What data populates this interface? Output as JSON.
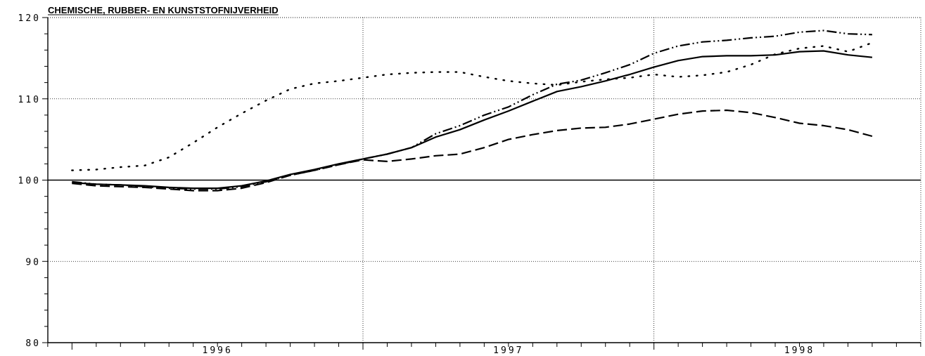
{
  "chart_data": {
    "type": "line",
    "title": "CHEMISCHE, RUBBER- EN KUNSTSTOFNIJVERHEID",
    "xlabel": "",
    "ylabel": "",
    "ylim": [
      80,
      120
    ],
    "xlim": [
      1995.917,
      1998.917
    ],
    "yticks": [
      80,
      90,
      100,
      110,
      120
    ],
    "ytick_labels": [
      "80",
      "90",
      "100",
      "110",
      "120"
    ],
    "xtick_labels": [
      {
        "label": "1996",
        "x": 1996.5
      },
      {
        "label": "1997",
        "x": 1997.5
      },
      {
        "label": "1998",
        "x": 1998.5
      }
    ],
    "year_boundaries": [
      1997.0,
      1998.0
    ],
    "reference_line": 100,
    "grid": true,
    "series": [
      {
        "style": "solid",
        "x": [
          1996.0,
          1996.083,
          1996.167,
          1996.25,
          1996.333,
          1996.417,
          1996.5,
          1996.583,
          1996.667,
          1996.75,
          1996.833,
          1996.917,
          1997.0,
          1997.083,
          1997.167,
          1997.25,
          1997.333,
          1997.417,
          1997.5,
          1997.583,
          1997.667,
          1997.75,
          1997.833,
          1997.917,
          1998.0,
          1998.083,
          1998.167,
          1998.25,
          1998.333,
          1998.417,
          1998.5,
          1998.583,
          1998.667,
          1998.75
        ],
        "y": [
          99.7,
          99.5,
          99.4,
          99.3,
          99.1,
          99.0,
          99.0,
          99.3,
          99.9,
          100.7,
          101.3,
          102.0,
          102.6,
          103.2,
          104.0,
          105.3,
          106.2,
          107.4,
          108.5,
          109.7,
          110.9,
          111.5,
          112.2,
          113.0,
          113.9,
          114.7,
          115.2,
          115.3,
          115.3,
          115.4,
          115.8,
          115.9,
          115.4,
          115.1
        ]
      },
      {
        "style": "dotted",
        "x": [
          1996.0,
          1996.083,
          1996.167,
          1996.25,
          1996.333,
          1996.417,
          1996.5,
          1996.583,
          1996.667,
          1996.75,
          1996.833,
          1996.917,
          1997.0,
          1997.083,
          1997.167,
          1997.25,
          1997.333,
          1997.417,
          1997.5,
          1997.583,
          1997.667,
          1997.75,
          1997.833,
          1997.917,
          1998.0,
          1998.083,
          1998.167,
          1998.25,
          1998.333,
          1998.417,
          1998.5,
          1998.583,
          1998.667,
          1998.75
        ],
        "y": [
          101.2,
          101.3,
          101.6,
          101.8,
          102.8,
          104.6,
          106.5,
          108.2,
          109.8,
          111.2,
          111.9,
          112.2,
          112.6,
          113.0,
          113.2,
          113.3,
          113.3,
          112.7,
          112.2,
          111.9,
          111.7,
          112.1,
          112.4,
          112.6,
          113.0,
          112.7,
          112.9,
          113.3,
          114.2,
          115.5,
          116.2,
          116.5,
          115.8,
          116.9
        ]
      },
      {
        "style": "dashed",
        "x": [
          1996.0,
          1996.083,
          1996.167,
          1996.25,
          1996.333,
          1996.417,
          1996.5,
          1996.583,
          1996.667,
          1996.75,
          1996.833,
          1996.917,
          1997.0,
          1997.083,
          1997.167,
          1997.25,
          1997.333,
          1997.417,
          1997.5,
          1997.583,
          1997.667,
          1997.75,
          1997.833,
          1997.917,
          1998.0,
          1998.083,
          1998.167,
          1998.25,
          1998.333,
          1998.417,
          1998.5,
          1998.583,
          1998.667,
          1998.75
        ],
        "y": [
          99.6,
          99.3,
          99.2,
          99.1,
          98.9,
          98.7,
          98.7,
          99.0,
          99.7,
          100.6,
          101.2,
          101.9,
          102.5,
          102.3,
          102.6,
          103.0,
          103.2,
          104.0,
          105.0,
          105.6,
          106.1,
          106.4,
          106.5,
          106.9,
          107.5,
          108.1,
          108.5,
          108.6,
          108.3,
          107.7,
          107.0,
          106.7,
          106.2,
          105.4
        ]
      },
      {
        "style": "dash-dot-dot",
        "x": [
          1996.0,
          1996.083,
          1996.167,
          1996.25,
          1996.333,
          1996.417,
          1996.5,
          1996.583,
          1996.667,
          1996.75,
          1996.833,
          1996.917,
          1997.0,
          1997.083,
          1997.167,
          1997.25,
          1997.333,
          1997.417,
          1997.5,
          1997.583,
          1997.667,
          1997.75,
          1997.833,
          1997.917,
          1998.0,
          1998.083,
          1998.167,
          1998.25,
          1998.333,
          1998.417,
          1998.5,
          1998.583,
          1998.667,
          1998.75
        ],
        "y": [
          99.8,
          99.5,
          99.4,
          99.2,
          99.0,
          98.9,
          98.9,
          99.2,
          99.8,
          100.6,
          101.2,
          101.9,
          102.6,
          103.2,
          104.0,
          105.7,
          106.7,
          108.0,
          109.0,
          110.5,
          111.8,
          112.3,
          113.2,
          114.2,
          115.6,
          116.5,
          117.0,
          117.2,
          117.5,
          117.7,
          118.2,
          118.4,
          118.0,
          117.9
        ]
      }
    ]
  }
}
